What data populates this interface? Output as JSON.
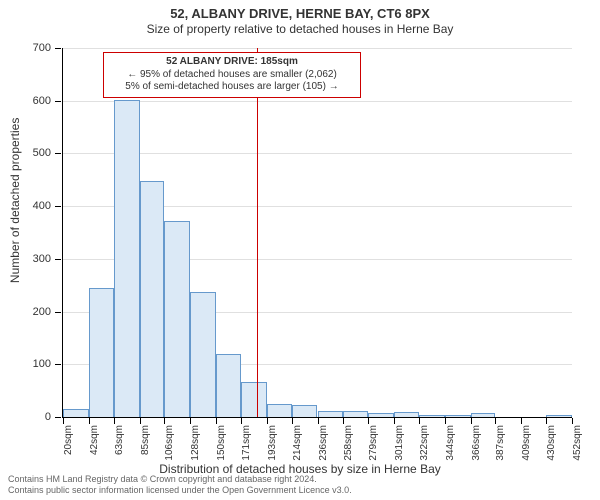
{
  "title": "52, ALBANY DRIVE, HERNE BAY, CT6 8PX",
  "subtitle": "Size of property relative to detached houses in Herne Bay",
  "chart": {
    "type": "histogram",
    "background_color": "#ffffff",
    "grid_color": "#e0e0e0",
    "axis_color": "#000000",
    "bar_fill": "#dbe9f6",
    "bar_stroke": "#6699cc",
    "bar_stroke_width": 1,
    "ylim": [
      0,
      700
    ],
    "ytick_step": 100,
    "y_ticks": [
      0,
      100,
      200,
      300,
      400,
      500,
      600,
      700
    ],
    "x_labels": [
      "20sqm",
      "42sqm",
      "63sqm",
      "85sqm",
      "106sqm",
      "128sqm",
      "150sqm",
      "171sqm",
      "193sqm",
      "214sqm",
      "236sqm",
      "258sqm",
      "279sqm",
      "301sqm",
      "322sqm",
      "344sqm",
      "366sqm",
      "387sqm",
      "409sqm",
      "430sqm",
      "452sqm"
    ],
    "x_positions_sqm": [
      20,
      42,
      63,
      85,
      106,
      128,
      150,
      171,
      193,
      214,
      236,
      258,
      279,
      301,
      322,
      344,
      366,
      387,
      409,
      430,
      452
    ],
    "bars": [
      {
        "x_start": 20,
        "x_end": 42,
        "count": 15
      },
      {
        "x_start": 42,
        "x_end": 63,
        "count": 245
      },
      {
        "x_start": 63,
        "x_end": 85,
        "count": 602
      },
      {
        "x_start": 85,
        "x_end": 106,
        "count": 447
      },
      {
        "x_start": 106,
        "x_end": 128,
        "count": 372
      },
      {
        "x_start": 128,
        "x_end": 150,
        "count": 237
      },
      {
        "x_start": 150,
        "x_end": 171,
        "count": 120
      },
      {
        "x_start": 171,
        "x_end": 193,
        "count": 67
      },
      {
        "x_start": 193,
        "x_end": 214,
        "count": 25
      },
      {
        "x_start": 214,
        "x_end": 236,
        "count": 22
      },
      {
        "x_start": 236,
        "x_end": 258,
        "count": 12
      },
      {
        "x_start": 258,
        "x_end": 279,
        "count": 12
      },
      {
        "x_start": 279,
        "x_end": 301,
        "count": 8
      },
      {
        "x_start": 301,
        "x_end": 322,
        "count": 10
      },
      {
        "x_start": 322,
        "x_end": 344,
        "count": 4
      },
      {
        "x_start": 344,
        "x_end": 366,
        "count": 3
      },
      {
        "x_start": 366,
        "x_end": 387,
        "count": 8
      },
      {
        "x_start": 387,
        "x_end": 409,
        "count": 0
      },
      {
        "x_start": 409,
        "x_end": 430,
        "count": 0
      },
      {
        "x_start": 430,
        "x_end": 452,
        "count": 3
      }
    ],
    "x_domain": [
      20,
      452
    ],
    "marker": {
      "value_sqm": 185,
      "color": "#cc0000"
    },
    "callout": {
      "border_color": "#cc0000",
      "background": "#ffffff",
      "line1": "52 ALBANY DRIVE: 185sqm",
      "line2": "← 95% of detached houses are smaller (2,062)",
      "line3": "5% of semi-detached houses are larger (105) →",
      "fontsize": 10
    },
    "y_axis_title": "Number of detached properties",
    "x_axis_title": "Distribution of detached houses by size in Herne Bay",
    "label_fontsize": 12,
    "tick_fontsize": 11,
    "xtick_fontsize": 10
  },
  "footer": {
    "line1": "Contains HM Land Registry data © Crown copyright and database right 2024.",
    "line2": "Contains public sector information licensed under the Open Government Licence v3.0.",
    "color": "#666666",
    "fontsize": 9
  }
}
